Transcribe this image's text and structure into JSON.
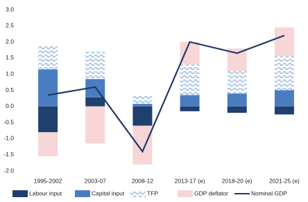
{
  "chart_data": {
    "type": "stacked-bar-line",
    "categories": [
      "1995-2002",
      "2003-07",
      "2008-12",
      "2013-17 (e)",
      "2018-20 (e)",
      "2021-25 (e)"
    ],
    "series": [
      {
        "name": "Labour input",
        "color": "#1f3f6e",
        "values": [
          -0.8,
          0.28,
          -0.6,
          -0.15,
          -0.2,
          -0.25
        ]
      },
      {
        "name": "Capital input",
        "color": "#4a7dc0",
        "values": [
          1.15,
          0.57,
          0.08,
          0.35,
          0.4,
          0.5
        ]
      },
      {
        "name": "TFP",
        "color": "#9dbde3",
        "pattern": "wave",
        "values": [
          0.75,
          0.85,
          0.27,
          0.95,
          0.7,
          1.05
        ]
      },
      {
        "name": "GDP deflator",
        "color": "#f6d6d6",
        "values": [
          -0.75,
          -1.15,
          -1.2,
          0.7,
          0.7,
          0.9
        ]
      },
      {
        "name": "Nominal GDP",
        "color": "#1f3a64",
        "kind": "line",
        "values": [
          0.35,
          0.6,
          -1.4,
          2.0,
          1.65,
          2.2
        ]
      }
    ],
    "ylim": [
      -2,
      3
    ],
    "yticks": [
      {
        "value": -2,
        "label": "-2.0"
      },
      -1.5,
      {
        "value": -1,
        "label": "-1.0"
      },
      -0.5,
      {
        "value": 0,
        "label": "0.0"
      },
      0.5,
      {
        "value": 1,
        "label": "1.0"
      },
      1.5,
      {
        "value": 2,
        "label": "2.0"
      },
      2.5,
      {
        "value": 3,
        "label": "3.0"
      }
    ],
    "legend": "bottom"
  }
}
